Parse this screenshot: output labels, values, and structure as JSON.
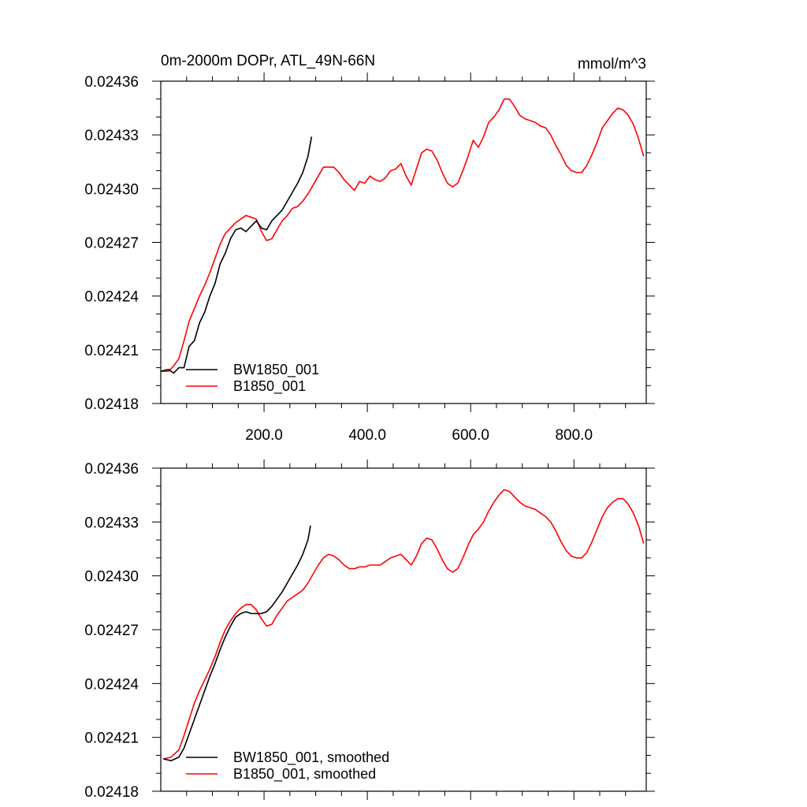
{
  "header": {
    "title": "0m-2000m DOPr, ATL_49N-66N",
    "units": "mmol/m^3"
  },
  "colors": {
    "BW1850_001": "#000000",
    "B1850_001": "#ff0000",
    "axes": "#000000",
    "background": "#ffffff"
  },
  "chart_data": [
    {
      "type": "line",
      "title": "0m-2000m DOPr, ATL_49N-66N",
      "units": "mmol/m^3",
      "xlim": [
        0,
        940
      ],
      "ylim": [
        0.02418,
        0.02436
      ],
      "x_ticks": [
        200,
        400,
        600,
        800
      ],
      "x_tick_labels": [
        "200.0",
        "400.0",
        "600.0",
        "800.0"
      ],
      "y_ticks": [
        0.02418,
        0.02421,
        0.02424,
        0.02427,
        0.0243,
        0.02433,
        0.02436
      ],
      "y_tick_labels": [
        "0.02418",
        "0.02421",
        "0.02424",
        "0.02427",
        "0.02430",
        "0.02433",
        "0.02436"
      ],
      "grid": false,
      "legend_position": "bottom-left",
      "series": [
        {
          "name": "BW1850_001",
          "color": "#000000",
          "points": [
            [
              0,
              0.024198
            ],
            [
              15,
              0.024199
            ],
            [
              25,
              0.024197
            ],
            [
              35,
              0.0242
            ],
            [
              45,
              0.0242
            ],
            [
              55,
              0.024212
            ],
            [
              65,
              0.024215
            ],
            [
              75,
              0.024225
            ],
            [
              85,
              0.024231
            ],
            [
              95,
              0.02424
            ],
            [
              105,
              0.024247
            ],
            [
              115,
              0.024258
            ],
            [
              125,
              0.024264
            ],
            [
              135,
              0.024272
            ],
            [
              145,
              0.024277
            ],
            [
              155,
              0.024278
            ],
            [
              165,
              0.024276
            ],
            [
              175,
              0.024279
            ],
            [
              185,
              0.024282
            ],
            [
              195,
              0.024278
            ],
            [
              205,
              0.024277
            ],
            [
              215,
              0.024282
            ],
            [
              225,
              0.024285
            ],
            [
              235,
              0.024288
            ],
            [
              245,
              0.024293
            ],
            [
              255,
              0.024298
            ],
            [
              265,
              0.024303
            ],
            [
              275,
              0.024309
            ],
            [
              285,
              0.024318
            ],
            [
              292,
              0.024329
            ]
          ]
        },
        {
          "name": "B1850_001",
          "color": "#ff0000",
          "points": [
            [
              0,
              0.024198
            ],
            [
              15,
              0.024198
            ],
            [
              25,
              0.024201
            ],
            [
              35,
              0.024205
            ],
            [
              45,
              0.024215
            ],
            [
              55,
              0.024226
            ],
            [
              65,
              0.024233
            ],
            [
              75,
              0.02424
            ],
            [
              85,
              0.024246
            ],
            [
              95,
              0.024253
            ],
            [
              105,
              0.024261
            ],
            [
              115,
              0.024269
            ],
            [
              125,
              0.024275
            ],
            [
              135,
              0.024278
            ],
            [
              145,
              0.024281
            ],
            [
              155,
              0.024283
            ],
            [
              165,
              0.024285
            ],
            [
              175,
              0.024284
            ],
            [
              185,
              0.024283
            ],
            [
              195,
              0.024276
            ],
            [
              205,
              0.024271
            ],
            [
              215,
              0.024272
            ],
            [
              225,
              0.024277
            ],
            [
              235,
              0.024282
            ],
            [
              245,
              0.024285
            ],
            [
              255,
              0.024289
            ],
            [
              265,
              0.02429
            ],
            [
              275,
              0.024293
            ],
            [
              285,
              0.024297
            ],
            [
              295,
              0.024302
            ],
            [
              305,
              0.024307
            ],
            [
              315,
              0.024312
            ],
            [
              325,
              0.024312
            ],
            [
              335,
              0.024312
            ],
            [
              345,
              0.024309
            ],
            [
              355,
              0.024305
            ],
            [
              365,
              0.024302
            ],
            [
              375,
              0.024299
            ],
            [
              385,
              0.024304
            ],
            [
              395,
              0.024303
            ],
            [
              405,
              0.024307
            ],
            [
              415,
              0.024305
            ],
            [
              425,
              0.024304
            ],
            [
              435,
              0.024306
            ],
            [
              445,
              0.02431
            ],
            [
              455,
              0.024311
            ],
            [
              465,
              0.024314
            ],
            [
              475,
              0.024307
            ],
            [
              485,
              0.024302
            ],
            [
              495,
              0.024311
            ],
            [
              505,
              0.02432
            ],
            [
              515,
              0.024322
            ],
            [
              525,
              0.024321
            ],
            [
              535,
              0.024316
            ],
            [
              545,
              0.024309
            ],
            [
              555,
              0.024303
            ],
            [
              565,
              0.024301
            ],
            [
              575,
              0.024303
            ],
            [
              585,
              0.02431
            ],
            [
              595,
              0.024318
            ],
            [
              605,
              0.024327
            ],
            [
              615,
              0.024323
            ],
            [
              625,
              0.024329
            ],
            [
              635,
              0.024337
            ],
            [
              645,
              0.02434
            ],
            [
              655,
              0.024344
            ],
            [
              665,
              0.02435
            ],
            [
              675,
              0.02435
            ],
            [
              685,
              0.024346
            ],
            [
              695,
              0.024341
            ],
            [
              705,
              0.024339
            ],
            [
              715,
              0.024338
            ],
            [
              725,
              0.024337
            ],
            [
              735,
              0.024335
            ],
            [
              745,
              0.024334
            ],
            [
              755,
              0.02433
            ],
            [
              765,
              0.024324
            ],
            [
              775,
              0.024319
            ],
            [
              785,
              0.024313
            ],
            [
              795,
              0.02431
            ],
            [
              805,
              0.024309
            ],
            [
              815,
              0.024309
            ],
            [
              825,
              0.024313
            ],
            [
              835,
              0.024319
            ],
            [
              845,
              0.024326
            ],
            [
              855,
              0.024334
            ],
            [
              865,
              0.024338
            ],
            [
              875,
              0.024342
            ],
            [
              885,
              0.024345
            ],
            [
              895,
              0.024344
            ],
            [
              905,
              0.024341
            ],
            [
              915,
              0.024336
            ],
            [
              925,
              0.024328
            ],
            [
              935,
              0.024318
            ]
          ]
        }
      ]
    },
    {
      "type": "line",
      "xlim": [
        0,
        940
      ],
      "ylim": [
        0.02418,
        0.02436
      ],
      "x_ticks": [
        200,
        400,
        600,
        800
      ],
      "y_ticks": [
        0.02418,
        0.02421,
        0.02424,
        0.02427,
        0.0243,
        0.02433,
        0.02436
      ],
      "y_tick_labels": [
        "0.02418",
        "0.02421",
        "0.02424",
        "0.02427",
        "0.02430",
        "0.02433",
        "0.02436"
      ],
      "grid": false,
      "legend_position": "bottom-left",
      "series": [
        {
          "name": "BW1850_001, smoothed",
          "color": "#000000",
          "points": [
            [
              5,
              0.024198
            ],
            [
              20,
              0.024197
            ],
            [
              35,
              0.024199
            ],
            [
              45,
              0.024204
            ],
            [
              55,
              0.024212
            ],
            [
              65,
              0.02422
            ],
            [
              75,
              0.024228
            ],
            [
              85,
              0.024236
            ],
            [
              95,
              0.024244
            ],
            [
              105,
              0.024251
            ],
            [
              115,
              0.024259
            ],
            [
              125,
              0.024266
            ],
            [
              135,
              0.024272
            ],
            [
              145,
              0.024277
            ],
            [
              155,
              0.024279
            ],
            [
              165,
              0.02428
            ],
            [
              175,
              0.024279
            ],
            [
              185,
              0.024279
            ],
            [
              195,
              0.024279
            ],
            [
              205,
              0.02428
            ],
            [
              215,
              0.024283
            ],
            [
              225,
              0.024287
            ],
            [
              235,
              0.024291
            ],
            [
              245,
              0.024296
            ],
            [
              255,
              0.024301
            ],
            [
              265,
              0.024306
            ],
            [
              275,
              0.024312
            ],
            [
              285,
              0.02432
            ],
            [
              290,
              0.024328
            ]
          ]
        },
        {
          "name": "B1850_001, smoothed",
          "color": "#ff0000",
          "points": [
            [
              5,
              0.024198
            ],
            [
              20,
              0.024199
            ],
            [
              35,
              0.024203
            ],
            [
              45,
              0.024211
            ],
            [
              55,
              0.02422
            ],
            [
              65,
              0.024229
            ],
            [
              75,
              0.024236
            ],
            [
              85,
              0.024242
            ],
            [
              95,
              0.024248
            ],
            [
              105,
              0.024255
            ],
            [
              115,
              0.024263
            ],
            [
              125,
              0.02427
            ],
            [
              135,
              0.024275
            ],
            [
              145,
              0.024279
            ],
            [
              155,
              0.024282
            ],
            [
              165,
              0.024284
            ],
            [
              175,
              0.024284
            ],
            [
              185,
              0.024281
            ],
            [
              195,
              0.024276
            ],
            [
              205,
              0.024272
            ],
            [
              215,
              0.024273
            ],
            [
              225,
              0.024278
            ],
            [
              235,
              0.024282
            ],
            [
              245,
              0.024286
            ],
            [
              255,
              0.024288
            ],
            [
              265,
              0.02429
            ],
            [
              275,
              0.024292
            ],
            [
              285,
              0.024296
            ],
            [
              295,
              0.024301
            ],
            [
              305,
              0.024306
            ],
            [
              315,
              0.02431
            ],
            [
              325,
              0.024312
            ],
            [
              335,
              0.024311
            ],
            [
              345,
              0.024309
            ],
            [
              355,
              0.024306
            ],
            [
              365,
              0.024304
            ],
            [
              375,
              0.024304
            ],
            [
              385,
              0.024305
            ],
            [
              395,
              0.024305
            ],
            [
              405,
              0.024306
            ],
            [
              415,
              0.024306
            ],
            [
              425,
              0.024306
            ],
            [
              435,
              0.024308
            ],
            [
              445,
              0.02431
            ],
            [
              455,
              0.024311
            ],
            [
              465,
              0.024312
            ],
            [
              475,
              0.024309
            ],
            [
              485,
              0.024306
            ],
            [
              495,
              0.024311
            ],
            [
              505,
              0.024318
            ],
            [
              515,
              0.024321
            ],
            [
              525,
              0.02432
            ],
            [
              535,
              0.024315
            ],
            [
              545,
              0.024309
            ],
            [
              555,
              0.024304
            ],
            [
              565,
              0.024302
            ],
            [
              575,
              0.024304
            ],
            [
              585,
              0.02431
            ],
            [
              595,
              0.024317
            ],
            [
              605,
              0.024323
            ],
            [
              615,
              0.024326
            ],
            [
              625,
              0.02433
            ],
            [
              635,
              0.024336
            ],
            [
              645,
              0.024341
            ],
            [
              655,
              0.024345
            ],
            [
              665,
              0.024348
            ],
            [
              675,
              0.024347
            ],
            [
              685,
              0.024344
            ],
            [
              695,
              0.024341
            ],
            [
              705,
              0.024339
            ],
            [
              715,
              0.024338
            ],
            [
              725,
              0.024337
            ],
            [
              735,
              0.024335
            ],
            [
              745,
              0.024333
            ],
            [
              755,
              0.02433
            ],
            [
              765,
              0.024325
            ],
            [
              775,
              0.024319
            ],
            [
              785,
              0.024314
            ],
            [
              795,
              0.024311
            ],
            [
              805,
              0.02431
            ],
            [
              815,
              0.02431
            ],
            [
              825,
              0.024313
            ],
            [
              835,
              0.024319
            ],
            [
              845,
              0.024326
            ],
            [
              855,
              0.024333
            ],
            [
              865,
              0.024338
            ],
            [
              875,
              0.024341
            ],
            [
              885,
              0.024343
            ],
            [
              895,
              0.024343
            ],
            [
              905,
              0.02434
            ],
            [
              915,
              0.024335
            ],
            [
              925,
              0.024328
            ],
            [
              935,
              0.024318
            ]
          ]
        }
      ]
    }
  ]
}
